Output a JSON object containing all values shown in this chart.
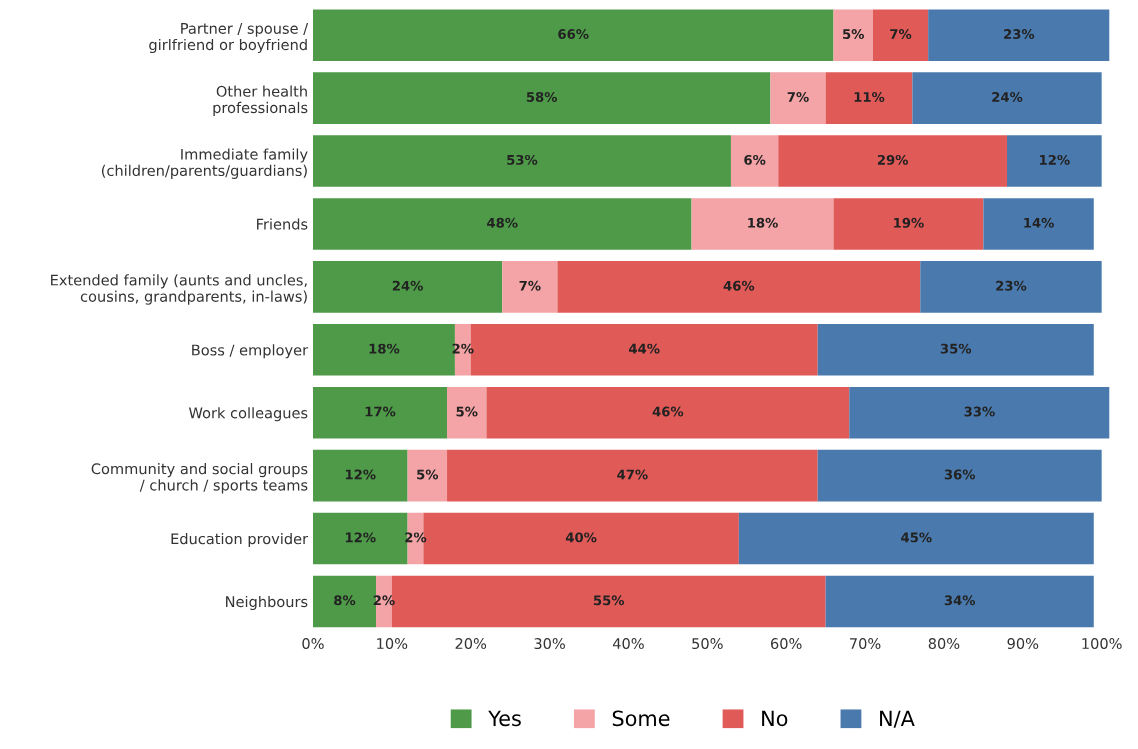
{
  "chart_data": {
    "type": "bar",
    "orientation": "horizontal",
    "stacked": true,
    "categories": [
      "Partner / spouse /\ngirlfriend or boyfriend",
      "Other health\nprofessionals",
      "Immediate family\n(children/parents/guardians)",
      "Friends",
      "Extended family (aunts and uncles,\ncousins, grandparents, in-laws)",
      "Boss / employer",
      "Work colleagues",
      "Community and social groups\n/ church / sports teams",
      "Education provider",
      "Neighbours"
    ],
    "series": [
      {
        "name": "Yes",
        "color": "#4e9a48",
        "values": [
          66,
          58,
          53,
          48,
          24,
          18,
          17,
          12,
          12,
          8
        ],
        "value_labels": [
          "66%",
          "58%",
          "53%",
          "48%",
          "24%",
          "18%",
          "17%",
          "12%",
          "12%",
          "8%"
        ]
      },
      {
        "name": "Some",
        "color": "#f4a3a6",
        "values": [
          5,
          7,
          6,
          18,
          7,
          2,
          5,
          5,
          2,
          2
        ],
        "value_labels": [
          "5%",
          "7%",
          "6%",
          "18%",
          "7%",
          "2%",
          "5%",
          "5%",
          "2%",
          "2%"
        ]
      },
      {
        "name": "No",
        "color": "#e05a58",
        "values": [
          7,
          11,
          29,
          19,
          46,
          44,
          46,
          47,
          40,
          55
        ],
        "value_labels": [
          "7%",
          "11%",
          "29%",
          "19%",
          "46%",
          "44%",
          "46%",
          "47%",
          "40%",
          "55%"
        ]
      },
      {
        "name": "N/A",
        "color": "#4a7aad",
        "values": [
          23,
          24,
          12,
          14,
          23,
          35,
          33,
          36,
          45,
          34
        ],
        "value_labels": [
          "23%",
          "24%",
          "12%",
          "14%",
          "23%",
          "35%",
          "33%",
          "36%",
          "45%",
          "34%"
        ]
      }
    ],
    "xlim": [
      0,
      101
    ],
    "xticks": [
      {
        "value": 0,
        "label": "0%"
      },
      {
        "value": 10,
        "label": "10%"
      },
      {
        "value": 20,
        "label": "20%"
      },
      {
        "value": 30,
        "label": "30%"
      },
      {
        "value": 40,
        "label": "40%"
      },
      {
        "value": 50,
        "label": "50%"
      },
      {
        "value": 60,
        "label": "60%"
      },
      {
        "value": 70,
        "label": "70%"
      },
      {
        "value": 80,
        "label": "80%"
      },
      {
        "value": 90,
        "label": "90%"
      },
      {
        "value": 100,
        "label": "100%"
      }
    ],
    "legend": "bottom"
  }
}
